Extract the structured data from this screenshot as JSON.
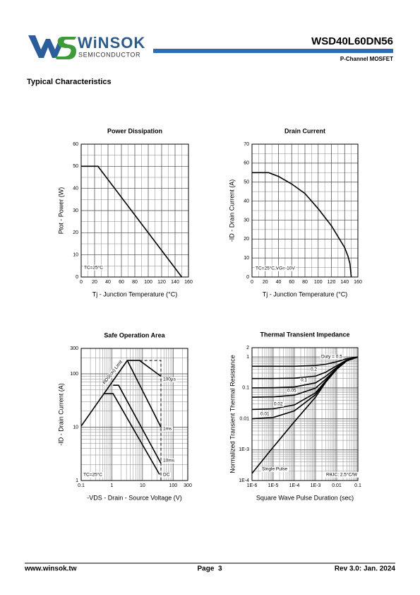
{
  "header": {
    "brand": "WiNSOK",
    "brand_sub": "SEMICONDUCTOR",
    "part_number": "WSD40L60DN56",
    "subtitle": "P-Channel MOSFET"
  },
  "section_title": "Typical Characteristics",
  "chart_data": [
    {
      "type": "line",
      "title": "Power Dissipation",
      "x_label": "Tj - Junction Temperature (°C)",
      "y_label": "Ptot - Power (W)",
      "x": [
        0,
        25,
        150
      ],
      "values": [
        50,
        50,
        0
      ],
      "color": "#000000",
      "xlim": [
        0,
        160
      ],
      "ylim": [
        0,
        60
      ],
      "xticks": [
        0,
        20,
        40,
        60,
        80,
        100,
        120,
        140,
        160
      ],
      "yticks": [
        0,
        10,
        20,
        30,
        40,
        50,
        60
      ],
      "grid": true,
      "minor_grid": true,
      "annotations": [
        "TC=25°C"
      ]
    },
    {
      "type": "line",
      "title": "Drain Current",
      "x_label": "Tj - Junction Temperature (°C)",
      "y_label": "-ID - Drain Current (A)",
      "x": [
        0,
        25,
        40,
        60,
        80,
        100,
        120,
        140,
        145,
        148,
        150
      ],
      "values": [
        55,
        55,
        53,
        49,
        44,
        36,
        27,
        15.5,
        11,
        7,
        0
      ],
      "color": "#000000",
      "xlim": [
        0,
        160
      ],
      "ylim": [
        0,
        70
      ],
      "xticks": [
        0,
        20,
        40,
        60,
        80,
        100,
        120,
        140,
        160
      ],
      "yticks": [
        0,
        10,
        20,
        30,
        40,
        50,
        60,
        70
      ],
      "grid": true,
      "minor_grid": true,
      "annotations": [
        "TC=25°C,VG=-10V"
      ]
    },
    {
      "type": "line",
      "title": "Safe Operation Area",
      "x_label": "-VDS - Drain - Source Voltage (V)",
      "y_label": "-ID - Drain Current (A)",
      "log_x": true,
      "log_y": true,
      "color": "#000000",
      "series": [
        {
          "name": "100µs",
          "x": [
            0.1,
            3.2,
            8,
            40
          ],
          "values": [
            10.5,
            178,
            178,
            90
          ]
        },
        {
          "name": "1ms",
          "x": [
            3.2,
            40
          ],
          "values": [
            178,
            10
          ]
        },
        {
          "name": "10ms",
          "x": [
            1.1,
            1.66,
            40
          ],
          "values": [
            61,
            61,
            2.1
          ]
        },
        {
          "name": "DC",
          "x": [
            0.58,
            1.1,
            36
          ],
          "values": [
            42.5,
            42.5,
            1.3
          ]
        },
        {
          "x": [
            8,
            40,
            40
          ],
          "values": [
            178,
            178,
            1
          ],
          "dashed": true
        }
      ],
      "xlim": [
        0.1,
        300
      ],
      "ylim": [
        1,
        300
      ],
      "xticks": [
        0.1,
        1,
        10,
        100,
        300
      ],
      "yticks": [
        1,
        10,
        100,
        300
      ],
      "grid": true,
      "minor_grid": true,
      "annotations": [
        "RDS(on) Limit",
        "TC=25°C"
      ]
    },
    {
      "type": "line",
      "title": "Thermal Transient Impedance",
      "x_label": "Square Wave Pulse Duration (sec)",
      "y_label": "Normalized Transient Thermal Resistance",
      "log_x": true,
      "log_y": true,
      "color": "#000000",
      "x": [
        1e-06,
        1e-05,
        0.0001,
        0.001,
        0.003,
        0.01,
        0.03,
        0.1
      ],
      "series": [
        {
          "name": "Duty = 0.5",
          "values": [
            0.5,
            0.5,
            0.5,
            0.53,
            0.58,
            0.7,
            0.88,
            1
          ]
        },
        {
          "name": "0.2",
          "values": [
            0.2,
            0.201,
            0.206,
            0.24,
            0.32,
            0.52,
            0.8,
            1
          ]
        },
        {
          "name": "0.1",
          "values": [
            0.1,
            0.101,
            0.107,
            0.145,
            0.235,
            0.46,
            0.78,
            1
          ]
        },
        {
          "name": "0.05",
          "values": [
            0.05,
            0.051,
            0.058,
            0.098,
            0.19,
            0.43,
            0.76,
            1
          ]
        },
        {
          "name": "0.02",
          "values": [
            0.02,
            0.021,
            0.028,
            0.069,
            0.167,
            0.41,
            0.755,
            1
          ]
        },
        {
          "name": "0.01",
          "values": [
            0.01,
            0.011,
            0.018,
            0.06,
            0.16,
            0.406,
            0.75,
            1
          ]
        },
        {
          "name": "Single Pulse",
          "values": [
            0.00017,
            0.0012,
            0.008,
            0.05,
            0.15,
            0.4,
            0.75,
            1
          ]
        }
      ],
      "xlim": [
        1e-06,
        0.1
      ],
      "ylim": [
        0.0001,
        2
      ],
      "xticks": [
        {
          "value": 1e-06,
          "label": "1E-6"
        },
        {
          "value": 1e-05,
          "label": "1E-5"
        },
        {
          "value": 0.0001,
          "label": "1E-4"
        },
        {
          "value": 0.001,
          "label": "1E-3"
        },
        0.01,
        0.1
      ],
      "yticks": [
        {
          "value": 0.0001,
          "label": "1E-4"
        },
        {
          "value": 0.001,
          "label": "1E-3"
        },
        0.01,
        0.1,
        1,
        2
      ],
      "grid": true,
      "minor_grid": true,
      "annotations": [
        "RθJC: 2.5°C/W"
      ]
    }
  ],
  "footer": {
    "website": "www.winsok.tw",
    "page": "Page  3",
    "revision": "Rev 3.0: Jan. 2024"
  }
}
